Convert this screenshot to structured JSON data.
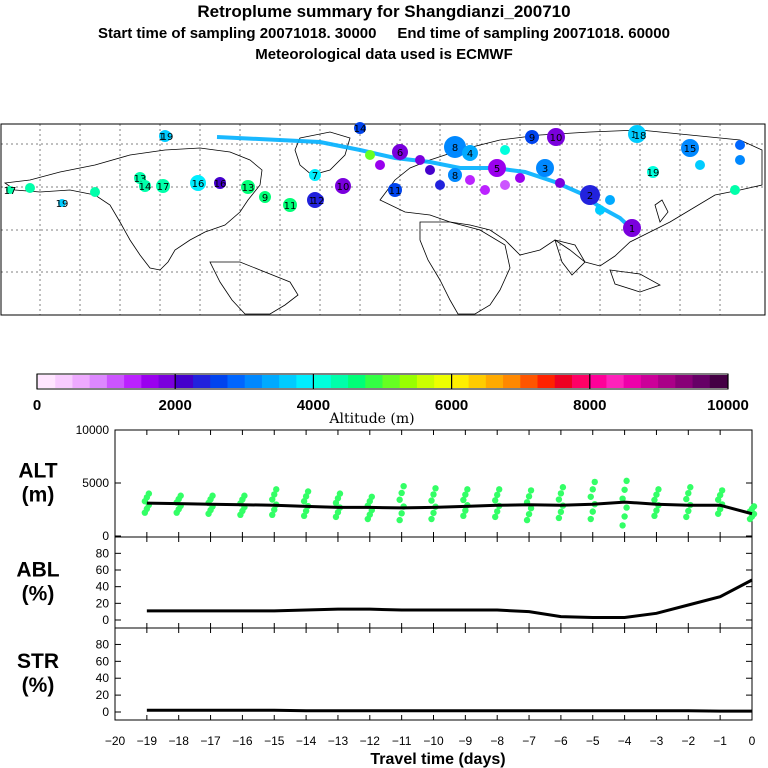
{
  "header": {
    "title": "Retroplume summary for Shangdianzi_200710",
    "subtitle": "Start time of sampling 20071018. 30000     End time of sampling 20071018. 60000",
    "met": "Meteorological data used is ECMWF"
  },
  "colorbar": {
    "label": "Altitude (m)",
    "min": 0,
    "max": 10000,
    "tick_labels": [
      "0",
      "2000",
      "4000",
      "6000",
      "8000",
      "10000"
    ],
    "colors": [
      "#ffe6ff",
      "#f8ccff",
      "#eeaaff",
      "#dd88ff",
      "#cc55ff",
      "#bb22ff",
      "#9a00ee",
      "#7a00dd",
      "#4400cc",
      "#2222dd",
      "#0044ee",
      "#0066ff",
      "#0088ff",
      "#00aaff",
      "#00ccff",
      "#00eeff",
      "#00ffdd",
      "#00ffaa",
      "#00ff77",
      "#33ff44",
      "#66ff22",
      "#99ff00",
      "#ccff00",
      "#eeff00",
      "#ffee00",
      "#ffcc00",
      "#ffaa00",
      "#ff8800",
      "#ff5500",
      "#ff2200",
      "#ee0022",
      "#ff0066",
      "#ff0099",
      "#ff22bb",
      "#ee00aa",
      "#cc0099",
      "#aa0088",
      "#880077",
      "#660066",
      "#440044"
    ]
  },
  "chart_data": [
    {
      "type": "scatter",
      "panel": "ALT",
      "ylabel": "ALT\n(m)",
      "ylim": [
        0,
        10000
      ],
      "yticks": [
        0,
        5000,
        10000
      ],
      "xlim": [
        -20,
        0
      ],
      "median_x": [
        -19,
        -18,
        -17,
        -16,
        -15,
        -14,
        -13,
        -12,
        -11,
        -10,
        -9,
        -8,
        -7,
        -6,
        -5,
        -4,
        -3,
        -2,
        -1,
        0
      ],
      "median_y": [
        3100,
        3050,
        3000,
        2950,
        2900,
        2800,
        2700,
        2700,
        2650,
        2700,
        2800,
        2900,
        2950,
        2900,
        3000,
        3200,
        3000,
        2900,
        2900,
        2100
      ],
      "spread": {
        "x": [
          -19,
          -18,
          -17,
          -16,
          -15,
          -14,
          -13,
          -12,
          -11,
          -10,
          -9,
          -8,
          -7,
          -6,
          -5,
          -4,
          -3,
          -2,
          -1,
          0
        ],
        "low": [
          2200,
          2200,
          2100,
          2000,
          2000,
          1900,
          1800,
          1600,
          1500,
          1600,
          1900,
          1800,
          1500,
          1700,
          1600,
          1000,
          1900,
          1800,
          2100,
          1600
        ],
        "high": [
          4000,
          3800,
          3800,
          3800,
          4400,
          4200,
          4000,
          3700,
          4700,
          4500,
          4400,
          4400,
          4300,
          4600,
          5100,
          5200,
          4400,
          4600,
          4300,
          2800
        ]
      }
    },
    {
      "type": "line",
      "panel": "ABL",
      "ylabel": "ABL\n(%)",
      "ylim": [
        0,
        90
      ],
      "yticks": [
        0,
        20,
        40,
        60,
        80
      ],
      "x": [
        -19,
        -18,
        -17,
        -16,
        -15,
        -14,
        -13,
        -12,
        -11,
        -10,
        -9,
        -8,
        -7,
        -6,
        -5,
        -4,
        -3,
        -2,
        -1,
        0
      ],
      "y": [
        11,
        11,
        11,
        11,
        11,
        12,
        13,
        13,
        12,
        12,
        12,
        12,
        10,
        4,
        3,
        3,
        8,
        18,
        28,
        48
      ]
    },
    {
      "type": "line",
      "panel": "STR",
      "ylabel": "STR\n(%)",
      "ylim": [
        0,
        90
      ],
      "yticks": [
        0,
        20,
        40,
        60,
        80
      ],
      "x": [
        -19,
        -18,
        -17,
        -16,
        -15,
        -14,
        -13,
        -12,
        -11,
        -10,
        -9,
        -8,
        -7,
        -6,
        -5,
        -4,
        -3,
        -2,
        -1,
        0
      ],
      "y": [
        2,
        2,
        2,
        2,
        2,
        1.5,
        1.5,
        1.5,
        1.5,
        1.5,
        1.5,
        1.5,
        1.5,
        1.5,
        1.5,
        1.5,
        1.5,
        1.5,
        1,
        1
      ]
    }
  ],
  "xaxis": {
    "label": "Travel time (days)",
    "tick_labels": [
      "−20",
      "−19",
      "−18",
      "−17",
      "−16",
      "−15",
      "−14",
      "−13",
      "−12",
      "−11",
      "−10",
      "−9",
      "−8",
      "−7",
      "−6",
      "−5",
      "−4",
      "−3",
      "−2",
      "−1",
      "0"
    ]
  },
  "map": {
    "plume_labels": [
      {
        "t": "19"
      },
      {
        "t": "19"
      },
      {
        "t": "18"
      },
      {
        "t": "19"
      },
      {
        "t": "13"
      },
      {
        "t": "14"
      },
      {
        "t": "17"
      },
      {
        "t": "16"
      },
      {
        "t": "11"
      },
      {
        "t": "9"
      },
      {
        "t": "7"
      },
      {
        "t": "10"
      },
      {
        "t": "12"
      },
      {
        "t": "6"
      },
      {
        "t": "8"
      },
      {
        "t": "5"
      },
      {
        "t": "4"
      },
      {
        "t": "3"
      },
      {
        "t": "2"
      },
      {
        "t": "1"
      },
      {
        "t": "15"
      },
      {
        "t": "18"
      },
      {
        "t": "19"
      },
      {
        "t": "17"
      },
      {
        "t": "16"
      },
      {
        "t": "8"
      },
      {
        "t": "9"
      },
      {
        "t": "10"
      },
      {
        "t": "11"
      },
      {
        "t": "12"
      },
      {
        "t": "13"
      },
      {
        "t": "14"
      }
    ]
  }
}
